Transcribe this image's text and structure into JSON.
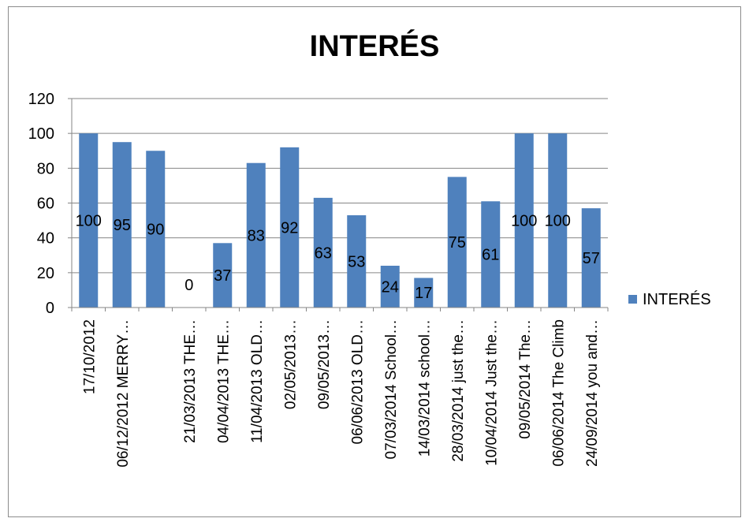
{
  "chart_data": {
    "type": "bar",
    "title": "INTERÉS",
    "xlabel": "",
    "ylabel": "",
    "ylim": [
      0,
      120
    ],
    "yticks": [
      0,
      20,
      40,
      60,
      80,
      100,
      120
    ],
    "grid": true,
    "legend_position": "right",
    "categories": [
      "17/10/2012",
      "06/12/2012 MERRY…",
      "",
      "21/03/2013 THE…",
      "04/04/2013  THE…",
      "11/04/2013 OLD…",
      "02/05/2013…",
      "09/05/2013…",
      "06/06/2013 OLD…",
      "07/03/2014 School…",
      "14/03/2014 school…",
      "28/03/2014 just the…",
      "10/04/2014 Just the…",
      "09/05/2014 The…",
      "06/06/2014 The Climb",
      "24/09/2014 you and…"
    ],
    "series": [
      {
        "name": "INTERÉS",
        "color": "#4f81bd",
        "values": [
          100,
          95,
          90,
          0,
          37,
          83,
          92,
          63,
          53,
          24,
          17,
          75,
          61,
          100,
          100,
          57
        ],
        "labels": [
          "100",
          "95",
          "90",
          "0",
          "37",
          "83",
          "92",
          "63",
          "53",
          "24",
          "17",
          "75",
          "61",
          "100",
          "100",
          "57"
        ]
      }
    ]
  }
}
